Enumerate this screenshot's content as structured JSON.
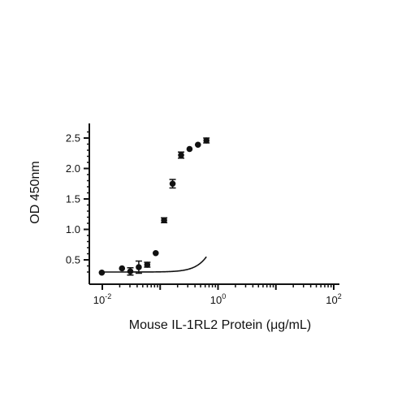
{
  "chart_data": {
    "type": "scatter",
    "title": "",
    "xlabel": "Mouse IL-1RL2 Protein (μg/mL)",
    "ylabel": "OD 450nm",
    "x_scale": "log",
    "xlim": [
      0.01,
      100
    ],
    "ylim": [
      0.2,
      2.62
    ],
    "x_ticks": [
      {
        "value": 0.01,
        "base": "10",
        "exp": "-2"
      },
      {
        "value": 1,
        "base": "10",
        "exp": "0"
      },
      {
        "value": 100,
        "base": "10",
        "exp": "2"
      }
    ],
    "y_ticks": [
      {
        "value": 0.5,
        "label": "0.5"
      },
      {
        "value": 1.0,
        "label": "1.0"
      },
      {
        "value": 1.5,
        "label": "1.5"
      },
      {
        "value": 2.0,
        "label": "2.0"
      },
      {
        "value": 2.5,
        "label": "2.5"
      }
    ],
    "grid": false,
    "legend": false,
    "series": [
      {
        "x": [
          0.0098,
          0.0219,
          0.0305,
          0.0427,
          0.0598,
          0.0838,
          0.117,
          0.164,
          0.23,
          0.322,
          0.45,
          0.63
        ],
        "y": [
          0.29,
          0.36,
          0.31,
          0.38,
          0.42,
          0.61,
          1.15,
          1.75,
          2.22,
          2.32,
          2.39,
          2.46
        ],
        "yerr": [
          0.0,
          0.0,
          0.06,
          0.1,
          0.04,
          0.0,
          0.04,
          0.07,
          0.05,
          0.0,
          0.0,
          0.04
        ],
        "fit": {
          "model": "4PL",
          "bottom": 0.3,
          "top": 2.46,
          "ec50": 1.42,
          "hill": 2.5
        }
      }
    ],
    "colors": {
      "marker": "#111111",
      "curve": "#111111",
      "axis": "#111111"
    }
  }
}
